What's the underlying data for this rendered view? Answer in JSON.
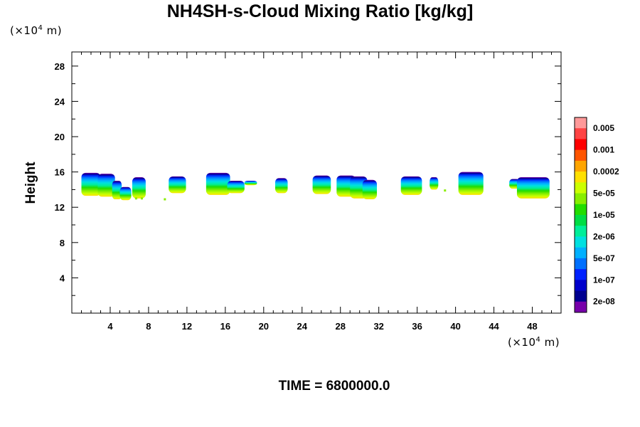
{
  "title": "NH4SH-s-Cloud Mixing Ratio [kg/kg]",
  "y_unit": {
    "prefix": "(×10",
    "exp": "4",
    "suffix": " m)"
  },
  "x_unit": {
    "prefix": "(×10",
    "exp": "4",
    "suffix": " m)"
  },
  "ylabel": "Height",
  "time_label": "TIME = 6800000.0",
  "chart_data": {
    "type": "heatmap",
    "title": "NH4SH-s-Cloud Mixing Ratio [kg/kg]",
    "xlabel": "",
    "ylabel": "Height",
    "x_unit": "×10^4 m",
    "y_unit": "×10^4 m",
    "xlim": [
      0,
      51
    ],
    "ylim": [
      0,
      29.6
    ],
    "x_ticks": [
      4,
      8,
      12,
      16,
      20,
      24,
      28,
      32,
      36,
      40,
      44,
      48
    ],
    "y_ticks": [
      4,
      8,
      12,
      16,
      20,
      24,
      28
    ],
    "colorbar": {
      "labels": [
        "0.005",
        "0.001",
        "0.0002",
        "5e-05",
        "1e-05",
        "2e-06",
        "5e-07",
        "1e-07",
        "2e-08"
      ],
      "colors": [
        "#ff9999",
        "#ff4444",
        "#ff0000",
        "#ff5500",
        "#ffa500",
        "#ffe000",
        "#ccff00",
        "#88ee00",
        "#22dd00",
        "#00dd44",
        "#00ee99",
        "#00e0e0",
        "#00b0ff",
        "#0070ff",
        "#0022ff",
        "#0000cc",
        "#000090",
        "#7700aa"
      ]
    },
    "cloud_cells": [
      {
        "x0": 1.0,
        "x1": 3.0,
        "top": 15.9,
        "base": 13.3
      },
      {
        "x0": 2.7,
        "x1": 4.5,
        "top": 15.8,
        "base": 13.2
      },
      {
        "x0": 4.2,
        "x1": 5.2,
        "top": 15.0,
        "base": 12.9
      },
      {
        "x0": 5.0,
        "x1": 6.2,
        "top": 14.3,
        "base": 12.8
      },
      {
        "x0": 6.3,
        "x1": 7.7,
        "top": 15.4,
        "base": 13.0
      },
      {
        "x0": 10.1,
        "x1": 11.9,
        "top": 15.5,
        "base": 13.6
      },
      {
        "x0": 14.0,
        "x1": 16.5,
        "top": 15.9,
        "base": 13.4
      },
      {
        "x0": 16.2,
        "x1": 18.0,
        "top": 15.0,
        "base": 13.6
      },
      {
        "x0": 18.0,
        "x1": 19.3,
        "top": 15.0,
        "base": 14.5
      },
      {
        "x0": 21.2,
        "x1": 22.5,
        "top": 15.3,
        "base": 13.6
      },
      {
        "x0": 25.1,
        "x1": 27.0,
        "top": 15.6,
        "base": 13.5
      },
      {
        "x0": 27.6,
        "x1": 29.6,
        "top": 15.6,
        "base": 13.2
      },
      {
        "x0": 29.0,
        "x1": 30.8,
        "top": 15.5,
        "base": 13.0
      },
      {
        "x0": 30.3,
        "x1": 31.8,
        "top": 15.1,
        "base": 12.9
      },
      {
        "x0": 34.3,
        "x1": 36.5,
        "top": 15.5,
        "base": 13.4
      },
      {
        "x0": 37.3,
        "x1": 38.2,
        "top": 15.4,
        "base": 14.0
      },
      {
        "x0": 40.3,
        "x1": 42.9,
        "top": 16.0,
        "base": 13.4
      },
      {
        "x0": 45.6,
        "x1": 46.7,
        "top": 15.2,
        "base": 14.1
      },
      {
        "x0": 46.4,
        "x1": 49.8,
        "top": 15.4,
        "base": 13.0
      }
    ],
    "specks": [
      [
        6.7,
        13.0
      ],
      [
        7.3,
        13.0
      ],
      [
        9.7,
        12.9
      ],
      [
        38.9,
        13.9
      ]
    ]
  }
}
